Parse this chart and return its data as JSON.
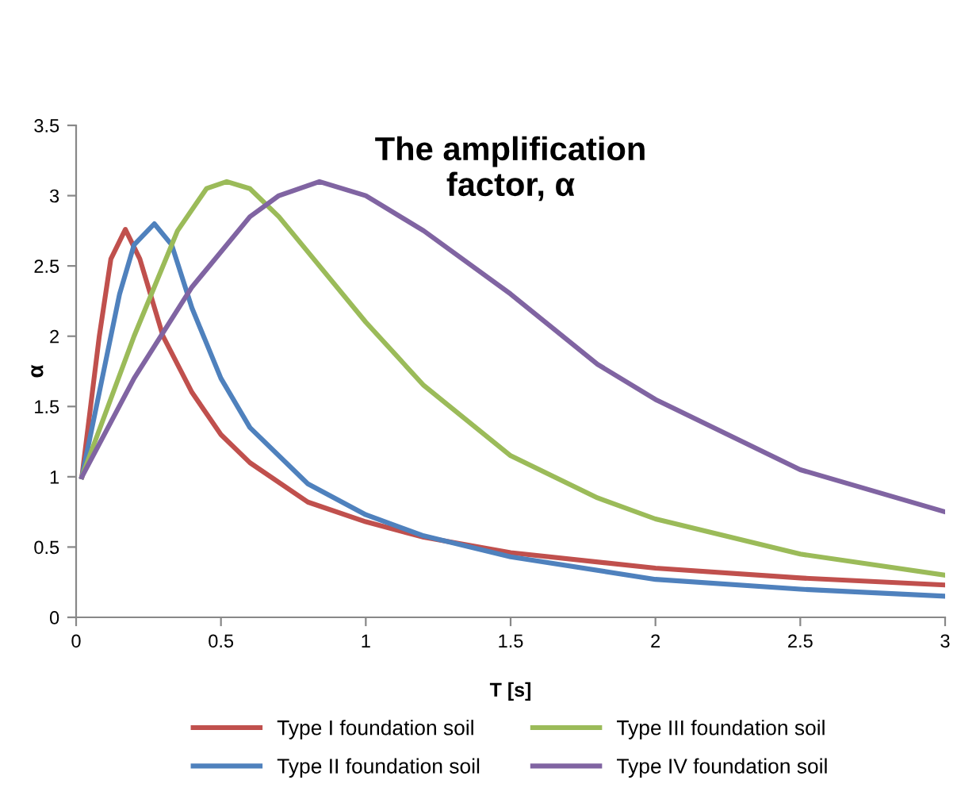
{
  "chart_data": {
    "type": "line",
    "title": "The amplification\nfactor, α",
    "xlabel": "T [s]",
    "ylabel": "α",
    "xlim": [
      0,
      3
    ],
    "xticks": [
      0,
      0.5,
      1,
      1.5,
      2,
      2.5,
      3
    ],
    "ylim": [
      0,
      3.5
    ],
    "yticks": [
      0,
      0.5,
      1,
      1.5,
      2,
      2.5,
      3,
      3.5
    ],
    "grid": false,
    "legend": "bottom",
    "marker": "none",
    "line_style": "solid",
    "series": [
      {
        "name": "Type I foundation soil",
        "color": "#c0504d",
        "x": [
          0.02,
          0.08,
          0.12,
          0.17,
          0.22,
          0.3,
          0.4,
          0.5,
          0.6,
          0.8,
          1.0,
          1.2,
          1.5,
          2.0,
          2.5,
          3.0
        ],
        "values": [
          1.0,
          2.0,
          2.55,
          2.76,
          2.55,
          2.0,
          1.6,
          1.3,
          1.1,
          0.82,
          0.68,
          0.57,
          0.46,
          0.35,
          0.28,
          0.23
        ]
      },
      {
        "name": "Type II foundation soil",
        "color": "#4f81bd",
        "x": [
          0.02,
          0.1,
          0.15,
          0.2,
          0.27,
          0.33,
          0.4,
          0.5,
          0.6,
          0.8,
          1.0,
          1.2,
          1.5,
          2.0,
          2.5,
          3.0
        ],
        "values": [
          1.0,
          1.8,
          2.3,
          2.65,
          2.8,
          2.65,
          2.2,
          1.7,
          1.35,
          0.95,
          0.73,
          0.58,
          0.43,
          0.27,
          0.2,
          0.15
        ]
      },
      {
        "name": "Type III foundation soil",
        "color": "#9bbb59",
        "x": [
          0.02,
          0.2,
          0.35,
          0.45,
          0.52,
          0.6,
          0.7,
          0.8,
          1.0,
          1.2,
          1.5,
          1.8,
          2.0,
          2.5,
          3.0
        ],
        "values": [
          1.0,
          2.0,
          2.75,
          3.05,
          3.1,
          3.05,
          2.85,
          2.6,
          2.1,
          1.65,
          1.15,
          0.85,
          0.7,
          0.45,
          0.3
        ]
      },
      {
        "name": "Type IV foundation soil",
        "color": "#8064a2",
        "x": [
          0.02,
          0.2,
          0.4,
          0.6,
          0.7,
          0.84,
          1.0,
          1.2,
          1.5,
          1.8,
          2.0,
          2.5,
          3.0
        ],
        "values": [
          1.0,
          1.7,
          2.35,
          2.85,
          3.0,
          3.1,
          3.0,
          2.75,
          2.3,
          1.8,
          1.55,
          1.05,
          0.75
        ]
      }
    ]
  }
}
